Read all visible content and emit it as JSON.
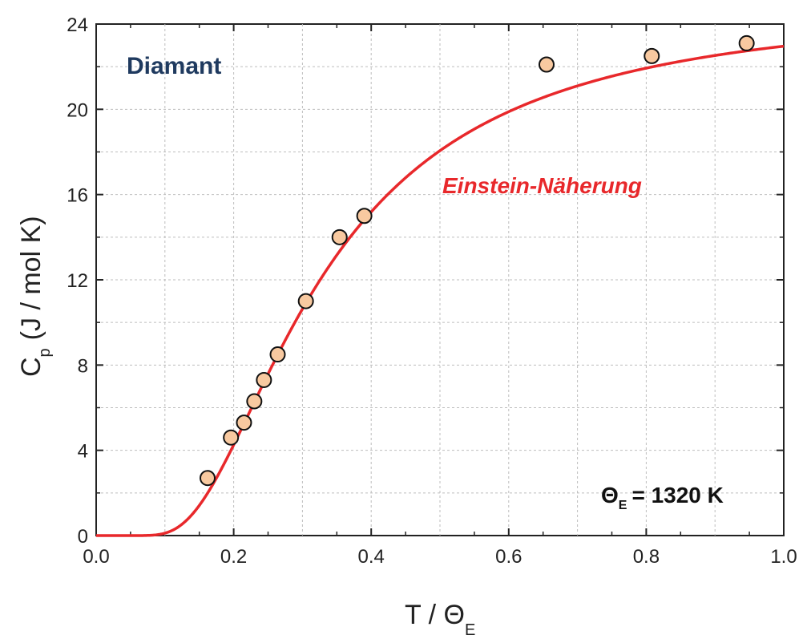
{
  "chart_data": {
    "type": "scatter",
    "xlim": [
      0.0,
      1.0
    ],
    "ylim": [
      0,
      24
    ],
    "x_ticks": [
      "0.0",
      "0.2",
      "0.4",
      "0.6",
      "0.8",
      "1.0"
    ],
    "y_ticks": [
      "0",
      "4",
      "8",
      "12",
      "16",
      "20",
      "24"
    ],
    "x_tick_values": [
      0.0,
      0.2,
      0.4,
      0.6,
      0.8,
      1.0
    ],
    "y_tick_values": [
      0,
      4,
      8,
      12,
      16,
      20,
      24
    ],
    "grid": true,
    "xlabel": {
      "main": "T / Θ",
      "sub": "E"
    },
    "ylabel": {
      "main": "C",
      "sub": "p",
      "unit": "(J / mol K)"
    },
    "sample_label": "Diamant",
    "curve_label": "Einstein-Näherung",
    "theta_label": {
      "main": "Θ",
      "sub": "E",
      "rest": "= 1320 K"
    },
    "series": [
      {
        "kind": "points",
        "x": [
          0.162,
          0.196,
          0.215,
          0.23,
          0.244,
          0.264,
          0.305,
          0.354,
          0.39,
          0.655,
          0.808,
          0.946
        ],
        "y": [
          2.7,
          4.6,
          5.3,
          6.3,
          7.3,
          8.5,
          11.0,
          14.0,
          15.0,
          22.1,
          22.5,
          23.1
        ]
      },
      {
        "kind": "curve",
        "model": "einstein",
        "amplitude": 24.94,
        "x_range": [
          0.0,
          1.0
        ]
      }
    ],
    "colors": {
      "curve": "#e8282b",
      "marker_fill": "#f8c9a0",
      "marker_stroke": "#111111",
      "grid": "#bdbdbd",
      "axis": "#222222"
    }
  }
}
